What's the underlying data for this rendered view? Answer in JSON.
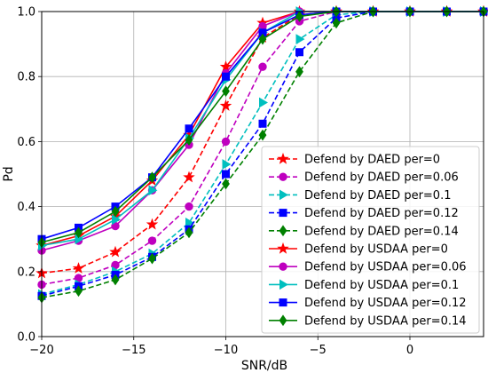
{
  "chart_data": {
    "type": "line",
    "title": "",
    "xlabel": "SNR/dB",
    "ylabel": "Pd",
    "xlim": [
      -20,
      4
    ],
    "ylim": [
      0,
      1
    ],
    "x_ticks": [
      -20,
      -15,
      -10,
      -5,
      0
    ],
    "x_tick_labels": [
      "−20",
      "−15",
      "−10",
      "−5",
      "0"
    ],
    "y_ticks": [
      0,
      0.2,
      0.4,
      0.6,
      0.8,
      1.0
    ],
    "y_tick_labels": [
      "0.0",
      "0.2",
      "0.4",
      "0.6",
      "0.8",
      "1.0"
    ],
    "grid": true,
    "legend_position": "lower-right",
    "x": [
      -20,
      -18,
      -16,
      -14,
      -12,
      -10,
      -8,
      -6,
      -4,
      -2,
      0,
      2,
      4
    ],
    "series": [
      {
        "name": "Defend by DAED per=0",
        "color": "#ff0000",
        "dash": "dashed",
        "marker": "star",
        "values": [
          0.195,
          0.21,
          0.26,
          0.345,
          0.49,
          0.71,
          0.92,
          0.99,
          1.0,
          1.0,
          1.0,
          1.0,
          1.0
        ]
      },
      {
        "name": "Defend by DAED per=0.06",
        "color": "#bf00bf",
        "dash": "dashed",
        "marker": "circle",
        "values": [
          0.16,
          0.18,
          0.22,
          0.295,
          0.4,
          0.6,
          0.83,
          0.97,
          1.0,
          1.0,
          1.0,
          1.0,
          1.0
        ]
      },
      {
        "name": "Defend by DAED per=0.1",
        "color": "#00bfbf",
        "dash": "dashed",
        "marker": "triangle-right",
        "values": [
          0.13,
          0.16,
          0.2,
          0.255,
          0.35,
          0.53,
          0.72,
          0.915,
          0.99,
          1.0,
          1.0,
          1.0,
          1.0
        ]
      },
      {
        "name": "Defend by DAED per=0.12",
        "color": "#0000ff",
        "dash": "dashed",
        "marker": "square",
        "values": [
          0.125,
          0.155,
          0.19,
          0.245,
          0.33,
          0.5,
          0.655,
          0.875,
          0.98,
          1.0,
          1.0,
          1.0,
          1.0
        ]
      },
      {
        "name": "Defend by DAED per=0.14",
        "color": "#008000",
        "dash": "dashed",
        "marker": "diamond",
        "values": [
          0.12,
          0.14,
          0.175,
          0.24,
          0.32,
          0.47,
          0.62,
          0.815,
          0.965,
          1.0,
          1.0,
          1.0,
          1.0
        ]
      },
      {
        "name": "Defend by USDAA per=0",
        "color": "#ff0000",
        "dash": "solid",
        "marker": "star",
        "values": [
          0.28,
          0.31,
          0.37,
          0.48,
          0.62,
          0.83,
          0.965,
          1.0,
          1.0,
          1.0,
          1.0,
          1.0,
          1.0
        ]
      },
      {
        "name": "Defend by USDAA per=0.06",
        "color": "#bf00bf",
        "dash": "solid",
        "marker": "circle",
        "values": [
          0.265,
          0.295,
          0.34,
          0.45,
          0.59,
          0.81,
          0.955,
          1.0,
          1.0,
          1.0,
          1.0,
          1.0,
          1.0
        ]
      },
      {
        "name": "Defend by USDAA per=0.1",
        "color": "#00bfbf",
        "dash": "solid",
        "marker": "triangle-right",
        "values": [
          0.28,
          0.3,
          0.36,
          0.45,
          0.61,
          0.79,
          0.935,
          1.0,
          1.0,
          1.0,
          1.0,
          1.0,
          1.0
        ]
      },
      {
        "name": "Defend by USDAA per=0.12",
        "color": "#0000ff",
        "dash": "solid",
        "marker": "square",
        "values": [
          0.3,
          0.335,
          0.4,
          0.49,
          0.64,
          0.8,
          0.935,
          0.99,
          1.0,
          1.0,
          1.0,
          1.0,
          1.0
        ]
      },
      {
        "name": "Defend by USDAA per=0.14",
        "color": "#008000",
        "dash": "solid",
        "marker": "diamond",
        "values": [
          0.29,
          0.32,
          0.385,
          0.49,
          0.605,
          0.755,
          0.915,
          0.985,
          1.0,
          1.0,
          1.0,
          1.0,
          1.0
        ]
      }
    ]
  }
}
